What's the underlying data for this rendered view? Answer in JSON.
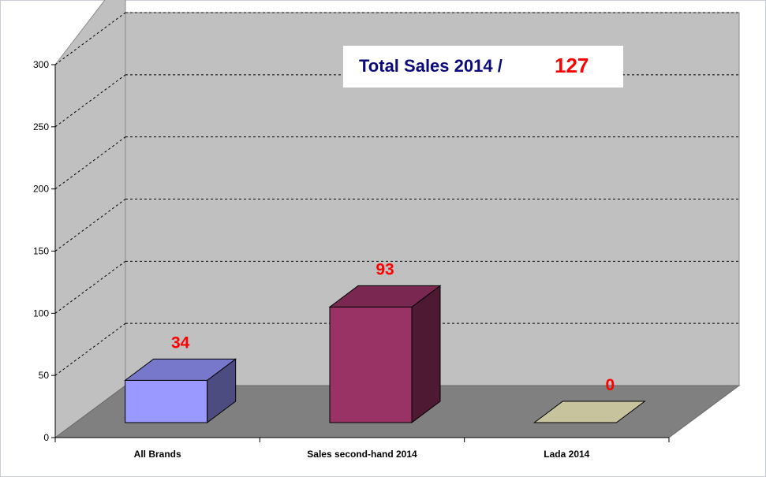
{
  "chart_data": {
    "type": "bar",
    "title": "Total Sales 2014 /",
    "total_value": "127",
    "categories": [
      "All Brands",
      "Sales second-hand 2014",
      "Lada 2014"
    ],
    "values": [
      34,
      93,
      0
    ],
    "data_labels": [
      "34",
      "93",
      "0"
    ],
    "ylim": [
      0,
      300
    ],
    "yticks": [
      0,
      50,
      100,
      150,
      200,
      250,
      300
    ],
    "grid": true,
    "legend": "none",
    "colors": {
      "bars": [
        {
          "front": "#9999ff",
          "top": "#7777cc",
          "side": "#4c4c80"
        },
        {
          "front": "#993366",
          "top": "#7a2852",
          "side": "#4d1933"
        },
        {
          "front": "#c7c39d",
          "top": "#c7c39d",
          "side": "#8f8c70"
        }
      ],
      "wall": "#c0c0c0",
      "floor": "#808080",
      "label": "#ff0000",
      "title": "#0a0a7a"
    }
  }
}
